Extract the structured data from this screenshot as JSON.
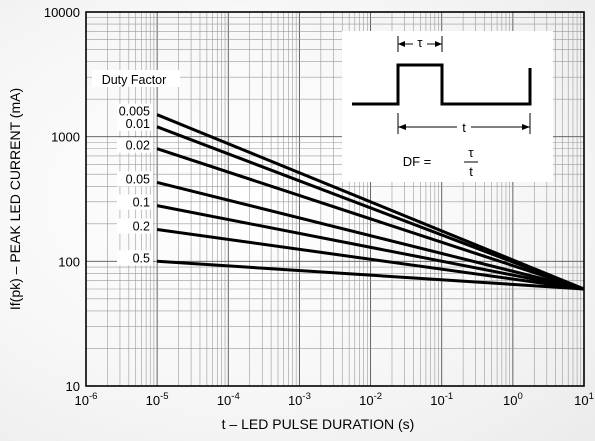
{
  "chart_data": {
    "type": "line",
    "xlabel": "t – LED PULSE DURATION (s)",
    "ylabel": "If(pk) – PEAK LED CURRENT (mA)",
    "x_scale": "log",
    "y_scale": "log",
    "xlim": [
      1e-06,
      10
    ],
    "ylim": [
      10,
      10000
    ],
    "x_ticks": [
      {
        "value": 1e-06,
        "base": "10",
        "exp": "-6"
      },
      {
        "value": 1e-05,
        "base": "10",
        "exp": "-5"
      },
      {
        "value": 0.0001,
        "base": "10",
        "exp": "-4"
      },
      {
        "value": 0.001,
        "base": "10",
        "exp": "-3"
      },
      {
        "value": 0.01,
        "base": "10",
        "exp": "-2"
      },
      {
        "value": 0.1,
        "base": "10",
        "exp": "-1"
      },
      {
        "value": 1,
        "base": "10",
        "exp": "0"
      },
      {
        "value": 10,
        "base": "10",
        "exp": "1"
      }
    ],
    "y_ticks": [
      {
        "value": 10,
        "label": "10"
      },
      {
        "value": 100,
        "label": "100"
      },
      {
        "value": 1000,
        "label": "1000"
      },
      {
        "value": 10000,
        "label": "10000"
      }
    ],
    "grid": true,
    "legend_title": "Duty Factor",
    "series": [
      {
        "name": "0.005",
        "points": [
          [
            1e-05,
            1500
          ],
          [
            10,
            60
          ]
        ]
      },
      {
        "name": "0.01",
        "points": [
          [
            1e-05,
            1200
          ],
          [
            10,
            60
          ]
        ]
      },
      {
        "name": "0.02",
        "points": [
          [
            1e-05,
            800
          ],
          [
            10,
            60
          ]
        ]
      },
      {
        "name": "0.05",
        "points": [
          [
            1e-05,
            430
          ],
          [
            10,
            60
          ]
        ]
      },
      {
        "name": "0.1",
        "points": [
          [
            1e-05,
            280
          ],
          [
            10,
            60
          ]
        ]
      },
      {
        "name": "0.2",
        "points": [
          [
            1e-05,
            180
          ],
          [
            10,
            60
          ]
        ]
      },
      {
        "name": "0.5",
        "points": [
          [
            1e-05,
            100
          ],
          [
            10,
            60
          ]
        ]
      }
    ],
    "inset": {
      "tau_label": "τ",
      "t_label": "t",
      "df_prefix": "DF =",
      "df_numerator": "τ",
      "df_denominator": "t"
    }
  }
}
